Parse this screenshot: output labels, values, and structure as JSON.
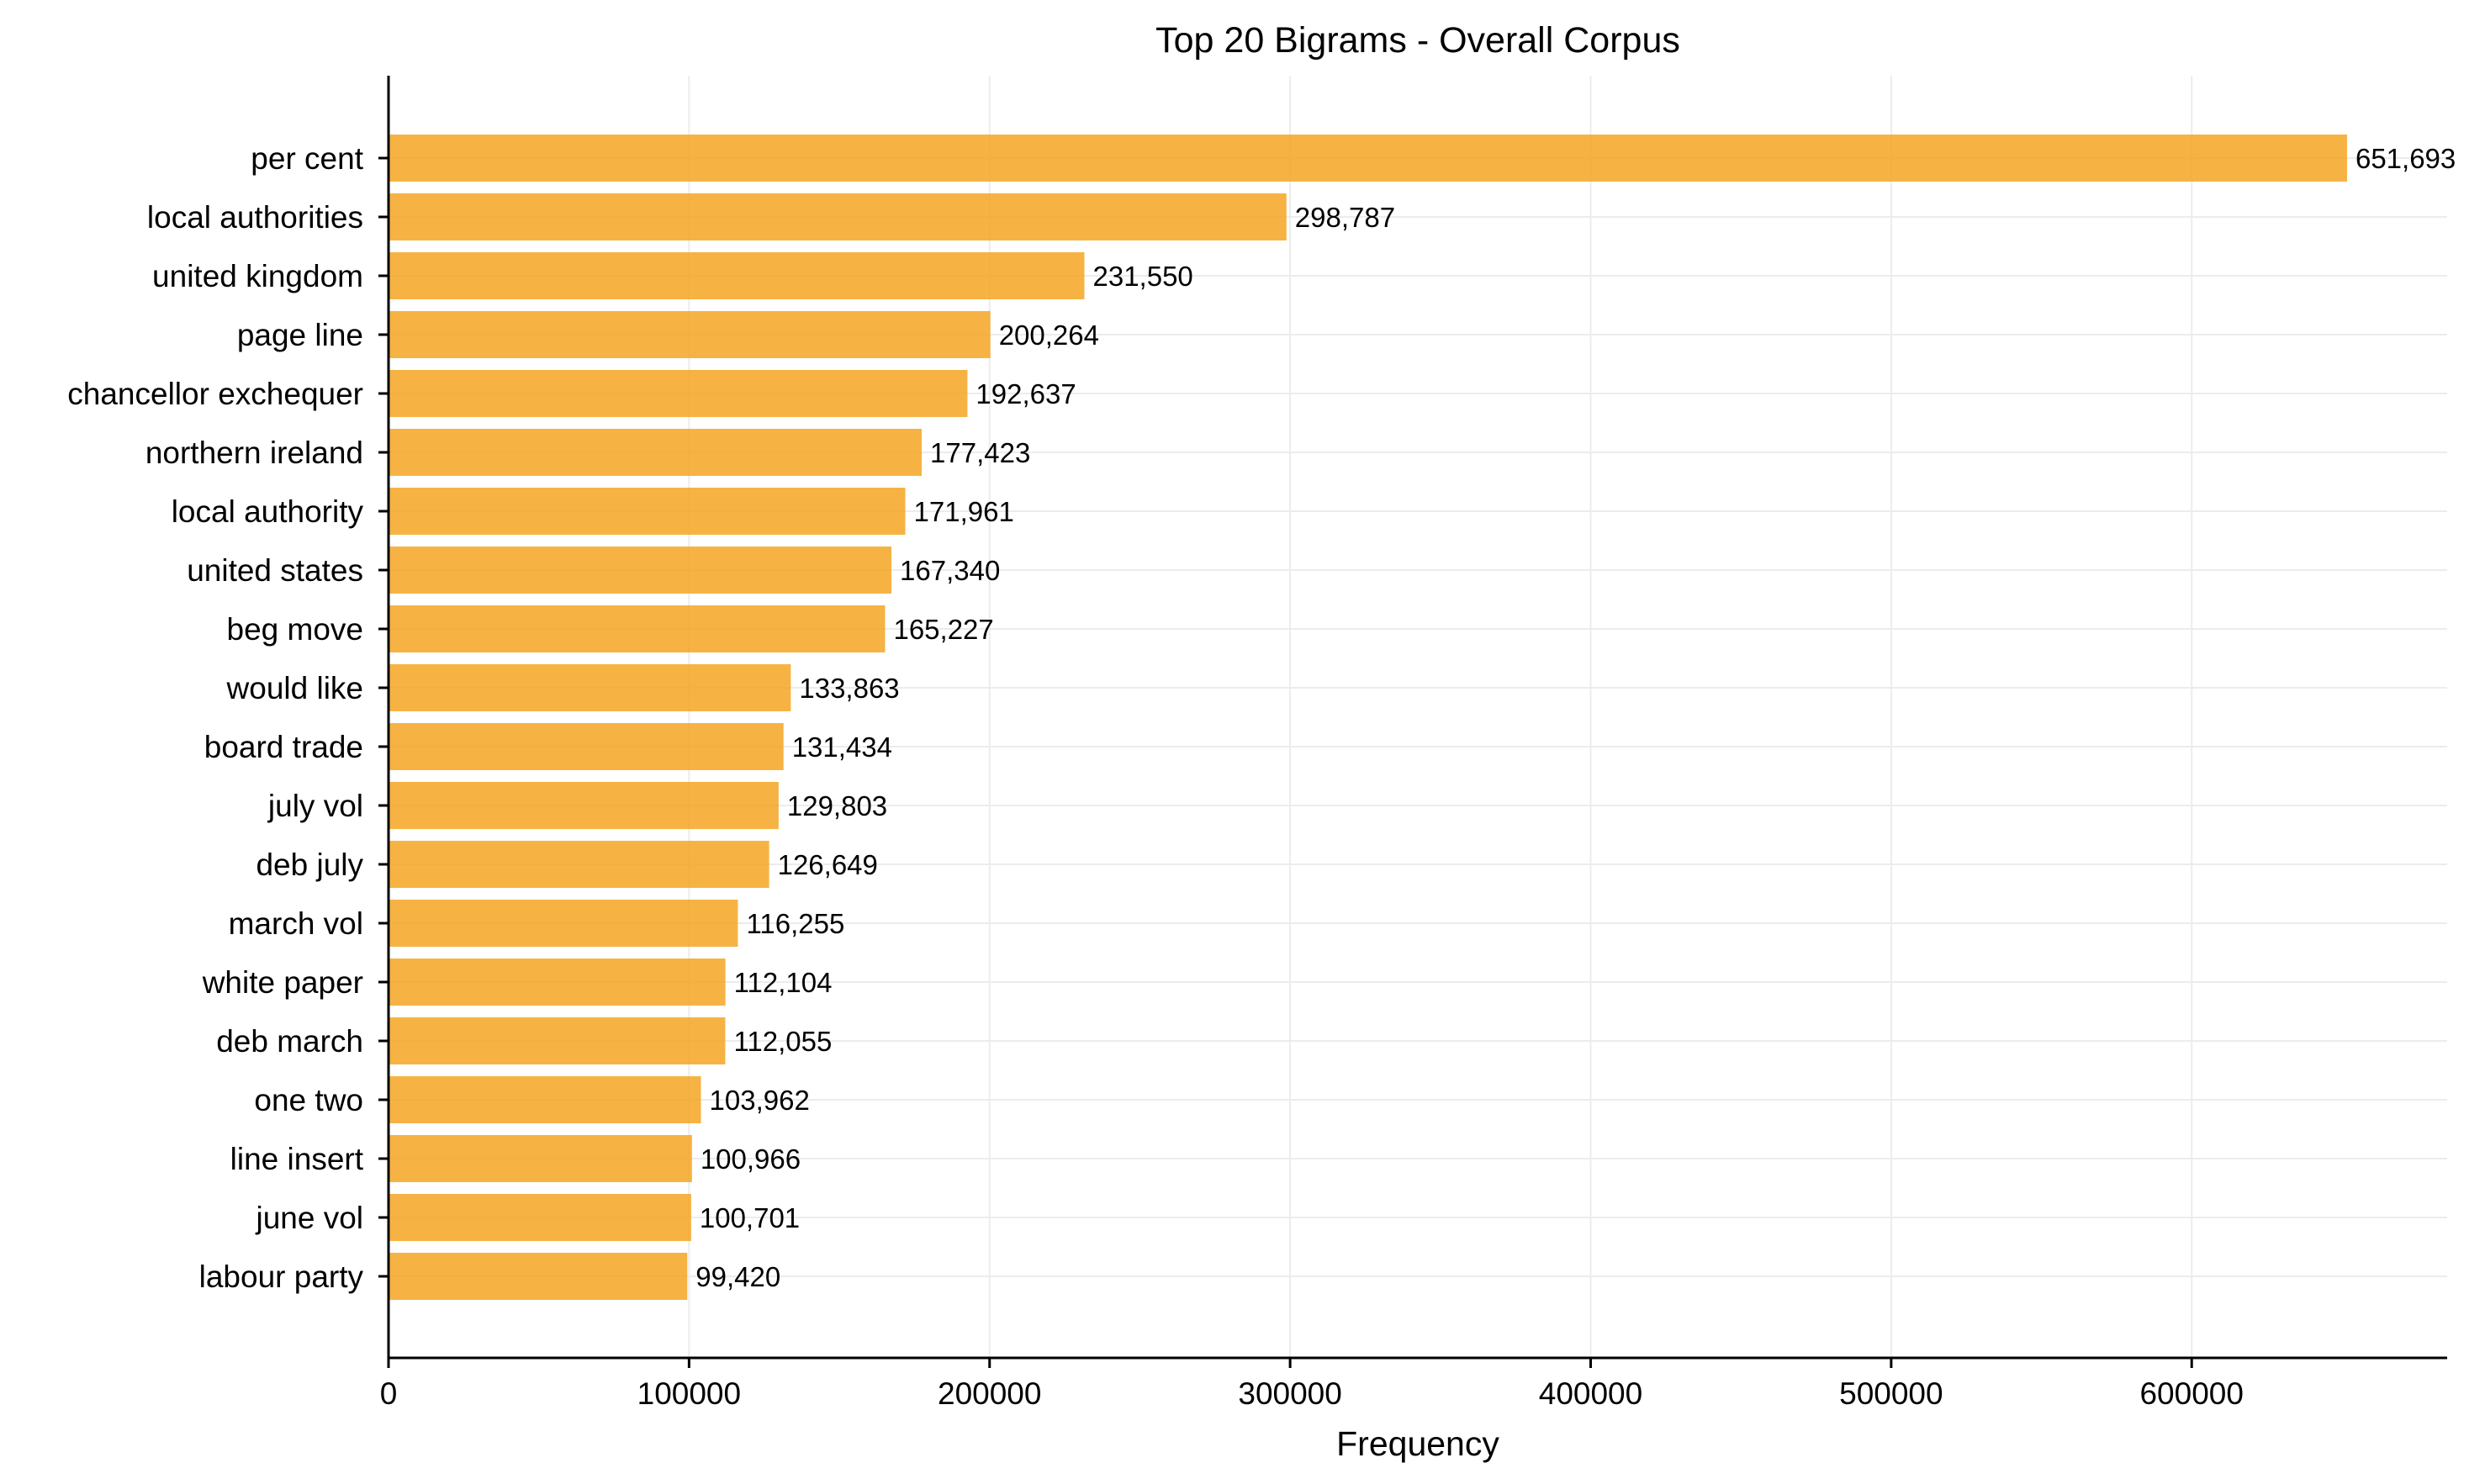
{
  "chart_data": {
    "type": "bar",
    "orientation": "horizontal",
    "title": "Top 20 Bigrams - Overall Corpus",
    "xlabel": "Frequency",
    "ylabel": "",
    "xlim": [
      0,
      685000
    ],
    "xticks": [
      0,
      100000,
      200000,
      300000,
      400000,
      500000,
      600000
    ],
    "xtick_labels": [
      "0",
      "100000",
      "200000",
      "300000",
      "400000",
      "500000",
      "600000"
    ],
    "grid": true,
    "bar_color": "#f5a623",
    "categories": [
      "per cent",
      "local authorities",
      "united kingdom",
      "page line",
      "chancellor exchequer",
      "northern ireland",
      "local authority",
      "united states",
      "beg move",
      "would like",
      "board trade",
      "july vol",
      "deb july",
      "march vol",
      "white paper",
      "deb march",
      "one two",
      "line insert",
      "june vol",
      "labour party"
    ],
    "values": [
      651693,
      298787,
      231550,
      200264,
      192637,
      177423,
      171961,
      167340,
      165227,
      133863,
      131434,
      129803,
      126649,
      116255,
      112104,
      112055,
      103962,
      100966,
      100701,
      99420
    ],
    "value_labels": [
      "651,693",
      "298,787",
      "231,550",
      "200,264",
      "192,637",
      "177,423",
      "171,961",
      "167,340",
      "165,227",
      "133,863",
      "131,434",
      "129,803",
      "126,649",
      "116,255",
      "112,104",
      "112,055",
      "103,962",
      "100,966",
      "100,701",
      "99,420"
    ]
  }
}
